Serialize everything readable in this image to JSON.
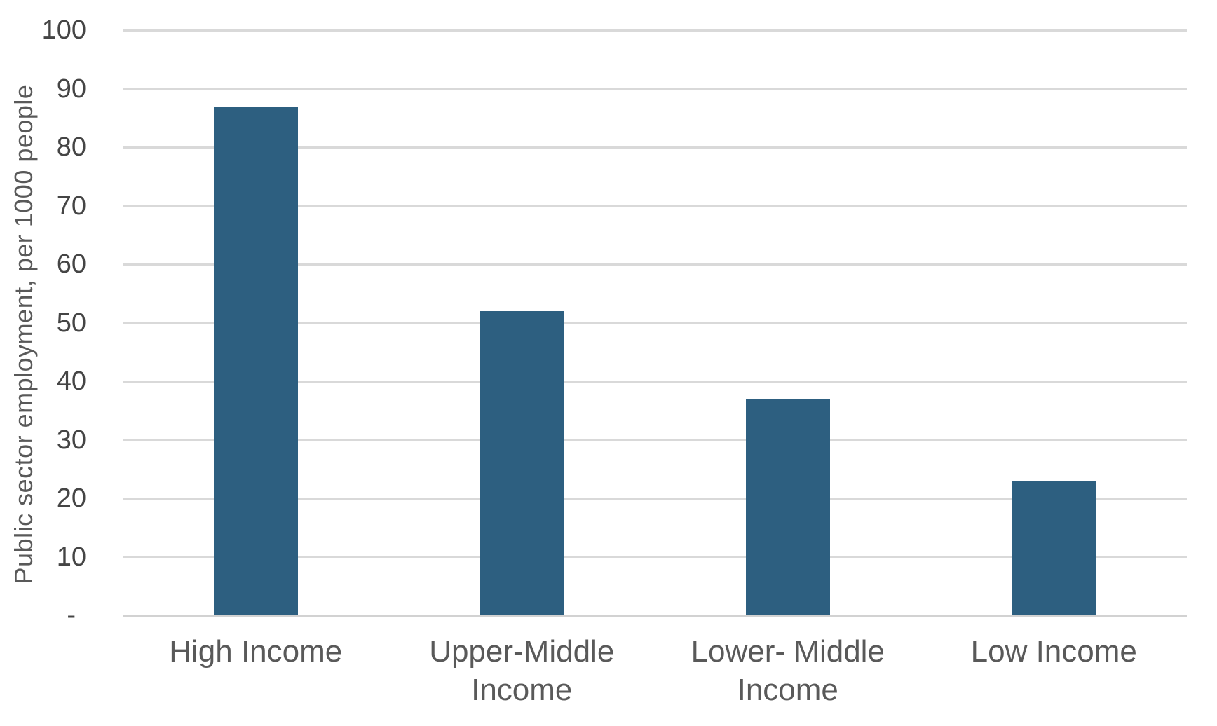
{
  "chart_data": {
    "type": "bar",
    "title": "",
    "ylabel": "Public sector employment, per 1000 people",
    "xlabel": "",
    "categories": [
      "High Income",
      "Upper-Middle Income",
      "Lower- Middle Income",
      "Low Income"
    ],
    "values": [
      87,
      52,
      37,
      23
    ],
    "ylim": [
      0,
      100
    ],
    "ytick_step": 10,
    "ytick_labels": [
      "-",
      "10",
      "20",
      "30",
      "40",
      "50",
      "60",
      "70",
      "80",
      "90",
      "100"
    ],
    "grid": true,
    "legend": "none",
    "colors": {
      "bar": "#2d5f80",
      "gridline": "#d9d9d9",
      "axis_line": "#d2d2d2",
      "tick_text": "#454545",
      "category_text": "#595959",
      "ylabel_text": "#595959",
      "background": "#ffffff"
    }
  }
}
